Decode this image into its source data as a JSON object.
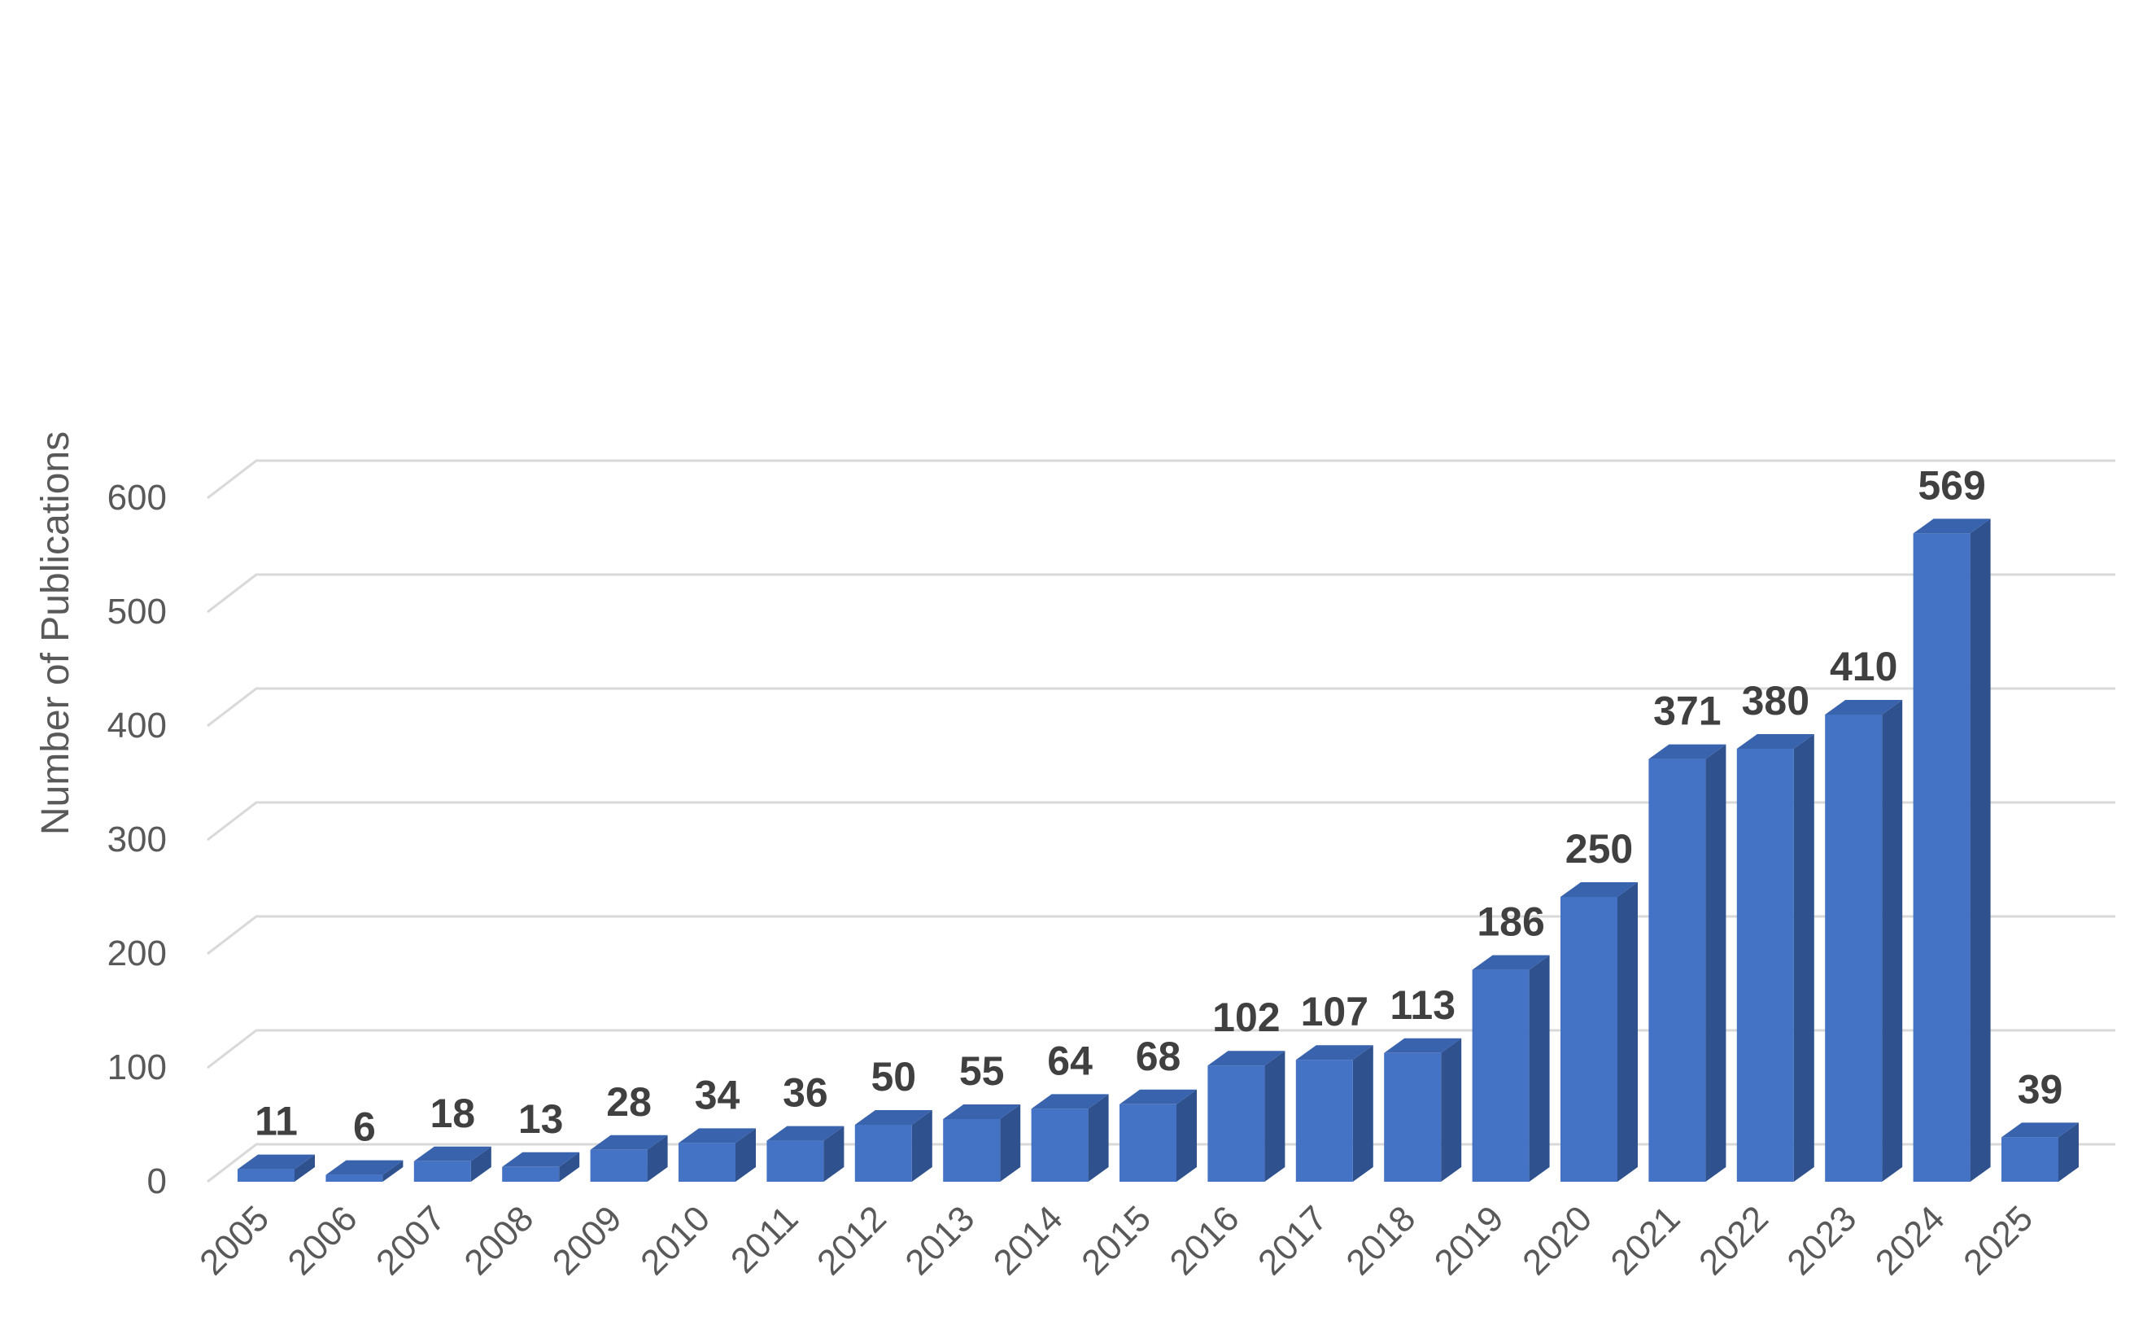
{
  "chart_data": {
    "type": "bar",
    "style": "3d-column",
    "title": "",
    "xlabel": "",
    "ylabel": "Number of Publications",
    "ylim": [
      0,
      600
    ],
    "yticks": [
      0,
      100,
      200,
      300,
      400,
      500,
      600
    ],
    "grid": true,
    "legend": "none",
    "categories": [
      "2005",
      "2006",
      "2007",
      "2008",
      "2009",
      "2010",
      "2011",
      "2012",
      "2013",
      "2014",
      "2015",
      "2016",
      "2017",
      "2018",
      "2019",
      "2020",
      "2021",
      "2022",
      "2023",
      "2024",
      "2025"
    ],
    "values": [
      11,
      6,
      18,
      13,
      28,
      34,
      36,
      50,
      55,
      64,
      68,
      102,
      107,
      113,
      186,
      250,
      371,
      380,
      410,
      569,
      39
    ],
    "data_labels": [
      "11",
      "6",
      "18",
      "13",
      "28",
      "34",
      "36",
      "50",
      "55",
      "64",
      "68",
      "102",
      "107",
      "113",
      "186",
      "250",
      "371",
      "380",
      "410",
      "569",
      "39"
    ],
    "colors": {
      "bar_front": "#4472C4",
      "bar_side": "#2F528F",
      "bar_top": "#3A63AE",
      "gridline": "#D9D9D9",
      "tick_text": "#595959",
      "label_text": "#404040"
    }
  }
}
